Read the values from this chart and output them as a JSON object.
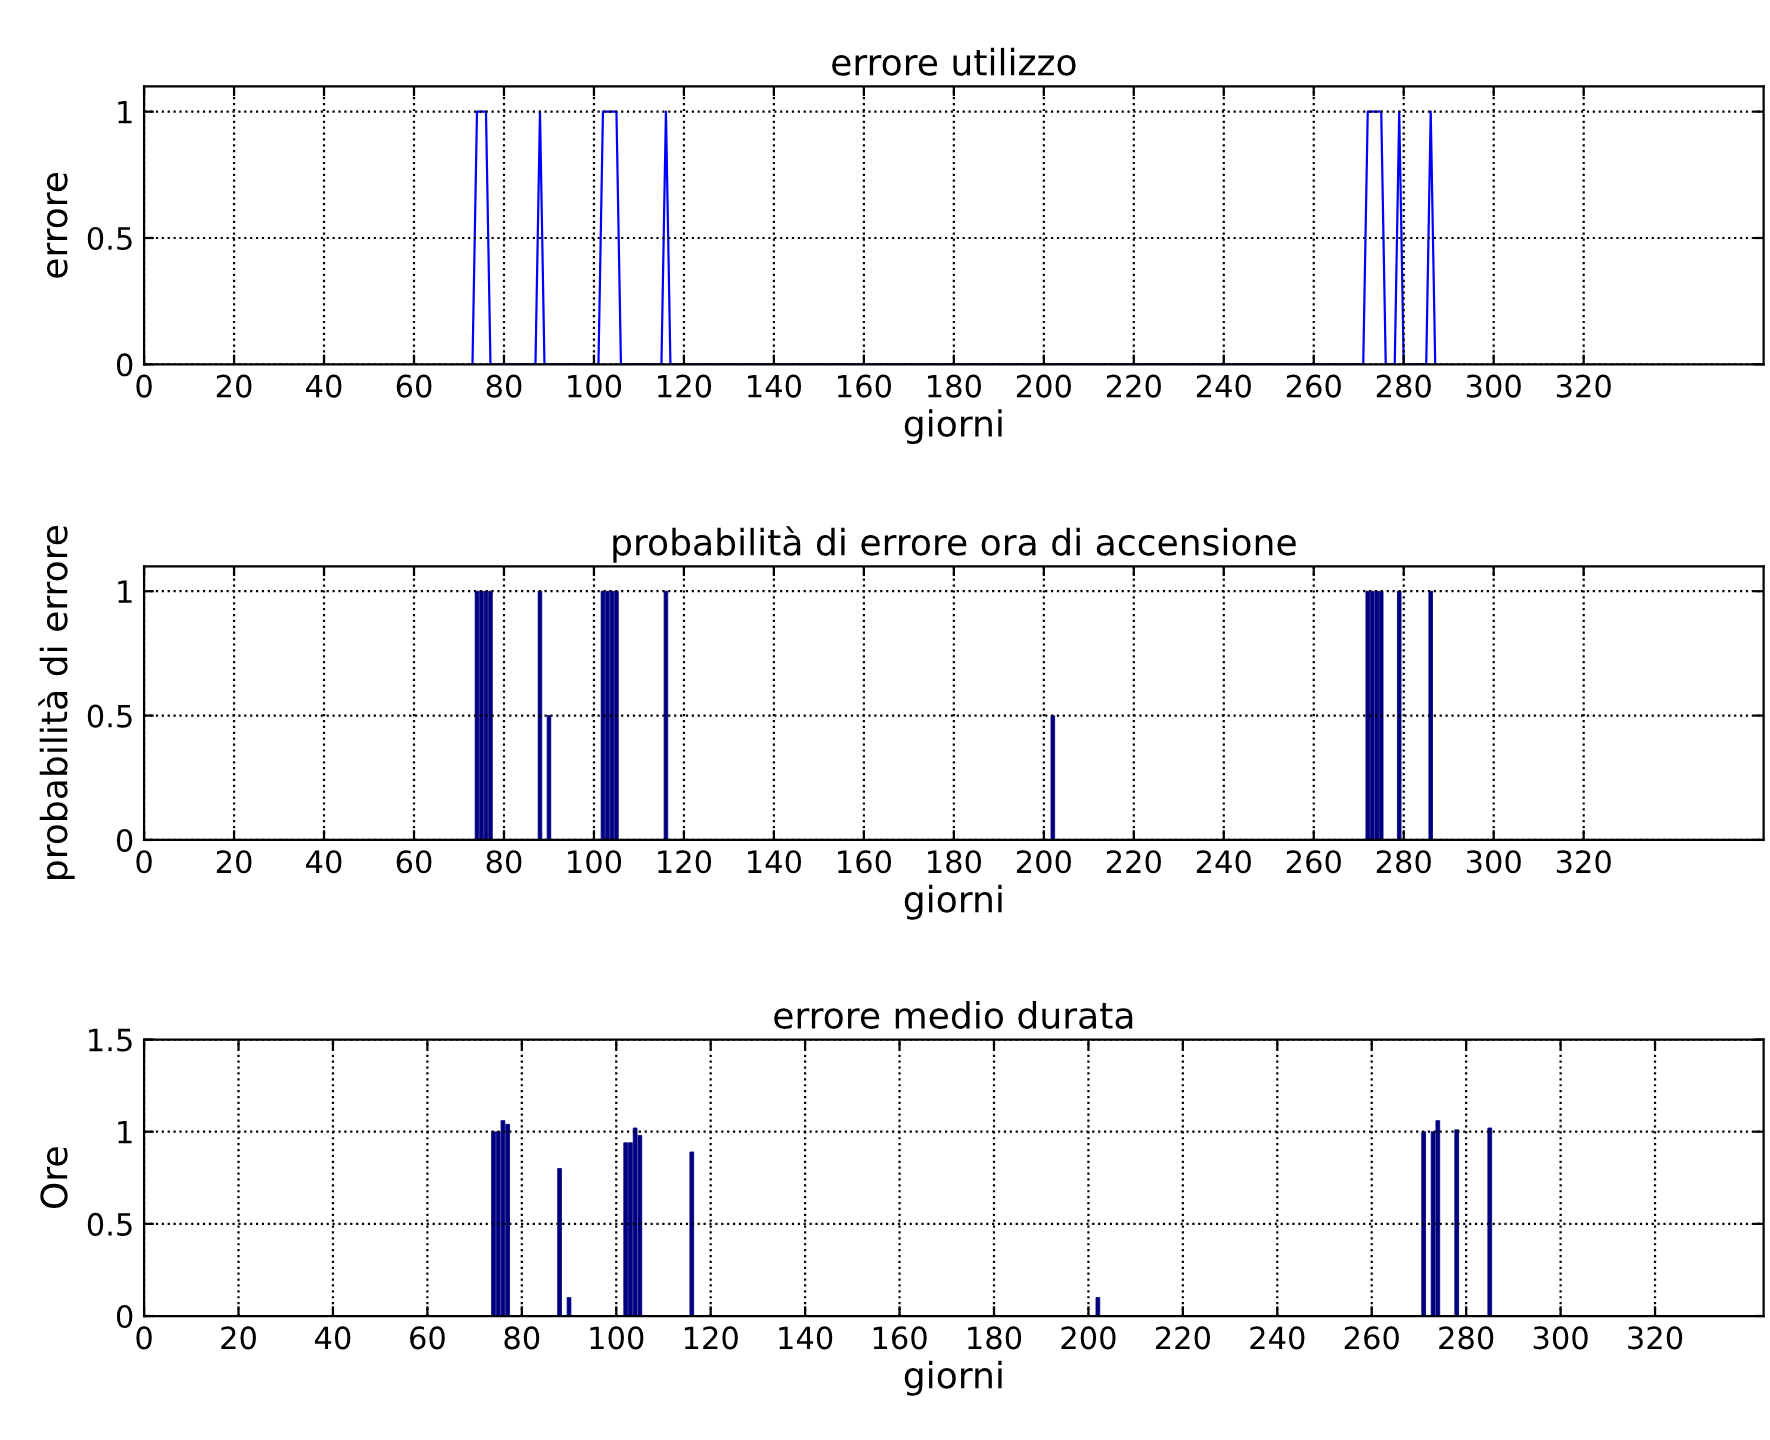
{
  "chart_data": [
    {
      "type": "line",
      "title": "errore utilizzo",
      "xlabel": "giorni",
      "ylabel": "errore",
      "xlim": [
        0,
        360
      ],
      "ylim": [
        0,
        1.1
      ],
      "xticks": [
        0,
        20,
        40,
        60,
        80,
        100,
        120,
        140,
        160,
        180,
        200,
        220,
        240,
        260,
        280,
        300,
        320
      ],
      "yticks": [
        0,
        0.5,
        1
      ],
      "grid": true,
      "series": [
        {
          "color": "#0000ff",
          "x": [
            73,
            74,
            76,
            77,
            87,
            88,
            89,
            101,
            102,
            105,
            106,
            115,
            116,
            117,
            271,
            272,
            275,
            276,
            278,
            279,
            280,
            285,
            286,
            287
          ],
          "values": [
            0,
            1,
            1,
            0,
            0,
            1,
            0,
            0,
            1,
            1,
            0,
            0,
            1,
            0,
            0,
            1,
            1,
            0,
            0,
            1,
            0,
            0,
            1,
            0
          ]
        }
      ]
    },
    {
      "type": "bar",
      "title": "probabilità di errore ora di accensione",
      "xlabel": "giorni",
      "ylabel": "probabilità di errore",
      "xlim": [
        0,
        360
      ],
      "ylim": [
        0,
        1.1
      ],
      "xticks": [
        0,
        20,
        40,
        60,
        80,
        100,
        120,
        140,
        160,
        180,
        200,
        220,
        240,
        260,
        280,
        300,
        320
      ],
      "yticks": [
        0,
        0.5,
        1
      ],
      "grid": true,
      "series": [
        {
          "color": "#000080",
          "x": [
            74,
            75,
            76,
            77,
            88,
            90,
            102,
            103,
            104,
            105,
            116,
            202,
            272,
            273,
            274,
            275,
            279,
            286
          ],
          "values": [
            1,
            1,
            1,
            1,
            1,
            0.5,
            1,
            1,
            1,
            1,
            1,
            0.5,
            1,
            1,
            1,
            1,
            1,
            1
          ]
        }
      ]
    },
    {
      "type": "bar",
      "title": "errore medio durata",
      "xlabel": "giorni",
      "ylabel": "Ore",
      "xlim": [
        0,
        343
      ],
      "ylim": [
        0,
        1.5
      ],
      "xticks": [
        0,
        20,
        40,
        60,
        80,
        100,
        120,
        140,
        160,
        180,
        200,
        220,
        240,
        260,
        280,
        300,
        320
      ],
      "yticks": [
        0,
        0.5,
        1,
        1.5
      ],
      "grid": true,
      "series": [
        {
          "color": "#000080",
          "x": [
            74,
            75,
            76,
            77,
            88,
            90,
            102,
            103,
            104,
            105,
            116,
            202,
            271,
            273,
            274,
            278,
            285
          ],
          "values": [
            1,
            1,
            1.06,
            1.04,
            0.8,
            0.1,
            0.94,
            0.94,
            1.02,
            0.98,
            0.89,
            0.1,
            1,
            1,
            1.06,
            1.01,
            1.02
          ]
        }
      ]
    }
  ]
}
